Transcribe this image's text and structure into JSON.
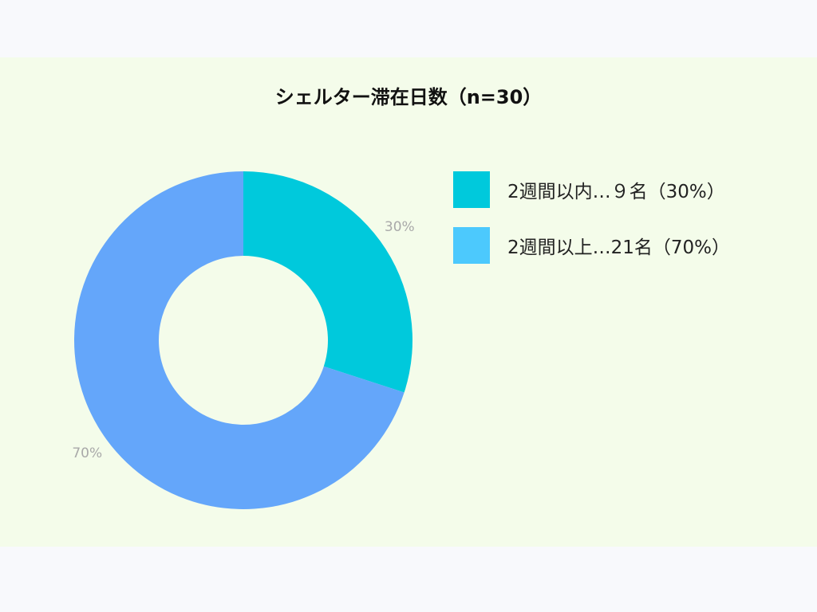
{
  "chart_data": {
    "type": "pie",
    "style": "donut",
    "title": "シェルター滞在日数（n=30）",
    "categories": [
      "2週間以内…９名（30%）",
      "2週間以上…21名（70%）"
    ],
    "values": [
      9,
      21
    ],
    "slice_labels": [
      "30%",
      "70%"
    ],
    "colors": [
      "#00c9dc",
      "#64a6fa"
    ],
    "legend_swatch_colors": [
      "#00c9dc",
      "#4cc9fd"
    ],
    "legend": "right"
  }
}
